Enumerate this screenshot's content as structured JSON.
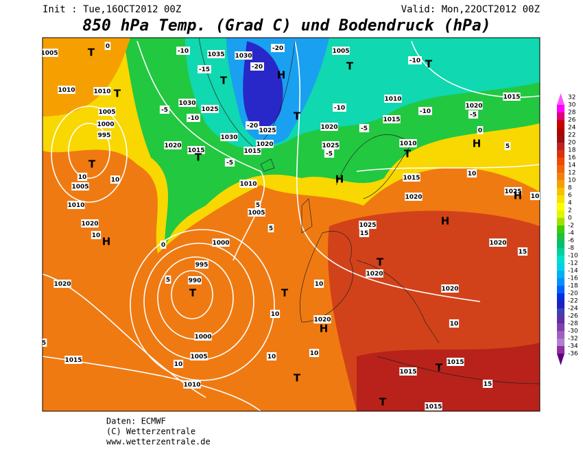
{
  "header": {
    "init": "Init : Tue,16OCT2012 00Z",
    "valid": "Valid: Mon,22OCT2012 00Z",
    "title": "850 hPa Temp. (Grad C) und Bodendruck (hPa)"
  },
  "legend": {
    "labels": [
      32,
      30,
      28,
      26,
      24,
      22,
      20,
      18,
      16,
      14,
      12,
      10,
      8,
      6,
      4,
      2,
      0,
      -2,
      -4,
      -6,
      -8,
      -10,
      -12,
      -14,
      -16,
      -18,
      -20,
      -22,
      -24,
      -26,
      -28,
      -30,
      -32,
      -34,
      -36
    ],
    "colors": [
      "#ff55ff",
      "#ff00ff",
      "#e0007a",
      "#c80000",
      "#b00000",
      "#9a0f0f",
      "#c02020",
      "#dc3010",
      "#ee4a00",
      "#f06410",
      "#f28010",
      "#f5a000",
      "#f8c000",
      "#f8e000",
      "#ffff00",
      "#e0f500",
      "#a0e000",
      "#40cc00",
      "#20c040",
      "#00c070",
      "#00d0a0",
      "#00e0c8",
      "#00d0e8",
      "#00b0f0",
      "#0090ff",
      "#0060ff",
      "#0030e0",
      "#2020c0",
      "#4040b0",
      "#6030a0",
      "#8040b0",
      "#a060c0",
      "#b080d0",
      "#9030a0",
      "#600080"
    ]
  },
  "map_labels": [
    "1005",
    "T",
    "0",
    "1035",
    "1030",
    "-10",
    "-15",
    "-20",
    "-20",
    "H",
    "T",
    "1030",
    "-5",
    "1025",
    "-10",
    "-20",
    "1025",
    "1030",
    "1015",
    "1020",
    "1020",
    "1015",
    "T",
    "-5",
    "T",
    "1005",
    "T",
    "-10",
    "T",
    "1010",
    "-10",
    "1015",
    "-10",
    "1020",
    "-5",
    "1015",
    "1020",
    "-5",
    "0",
    "H",
    "5",
    "1025",
    "-5",
    "1010",
    "T",
    "1015",
    "H",
    "10",
    "1020",
    "1025",
    "H",
    "10",
    "1010",
    "1005",
    "5",
    "1025",
    "H",
    "15",
    "0",
    "1000",
    "5",
    "1020",
    "15",
    "995",
    "T",
    "990",
    "5",
    "1020",
    "T",
    "T",
    "10",
    "1020",
    "1020",
    "H",
    "10",
    "1020",
    "1010",
    "1005",
    "10",
    "10",
    "T",
    "995",
    "1000",
    "1005",
    "1010",
    "1010",
    "T",
    "1020",
    "H",
    "10",
    "1000",
    "10",
    "1005",
    "10",
    "10",
    "10",
    "1015",
    "1015",
    "T",
    "1015",
    "T",
    "1010",
    "15",
    "T",
    "1015",
    "5"
  ],
  "footer": [
    "Daten: ECMWF",
    "(C) Wetterzentrale",
    "www.wetterzentrale.de"
  ]
}
